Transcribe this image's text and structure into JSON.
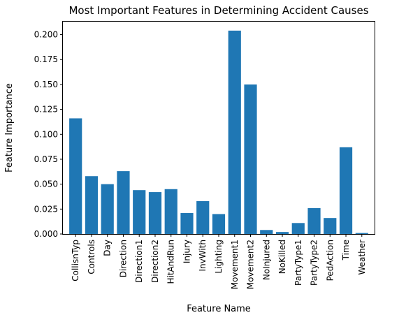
{
  "chart_data": {
    "type": "bar",
    "title": "Most Important Features in Determining Accident Causes",
    "xlabel": "Feature Name",
    "ylabel": "Feature Importance",
    "categories": [
      "CollisnTyp",
      "Controls",
      "Day",
      "Direction",
      "Direction1",
      "Direction2",
      "HitAndRun",
      "Injury",
      "InvWith",
      "Lighting",
      "Movement1",
      "Movement2",
      "NoInjured",
      "NoKilled",
      "PartyType1",
      "PartyType2",
      "PedAction",
      "Time",
      "Weather"
    ],
    "values": [
      0.116,
      0.058,
      0.05,
      0.063,
      0.044,
      0.042,
      0.045,
      0.021,
      0.033,
      0.02,
      0.204,
      0.15,
      0.004,
      0.002,
      0.011,
      0.026,
      0.016,
      0.087,
      0.001
    ],
    "ylim": [
      0,
      0.213
    ],
    "yticks": [
      0.0,
      0.025,
      0.05,
      0.075,
      0.1,
      0.125,
      0.15,
      0.175,
      0.2
    ],
    "ytick_labels": [
      "0.000",
      "0.025",
      "0.050",
      "0.075",
      "0.100",
      "0.125",
      "0.150",
      "0.175",
      "0.200"
    ],
    "bar_color": "#1f77b4",
    "grid": false
  }
}
